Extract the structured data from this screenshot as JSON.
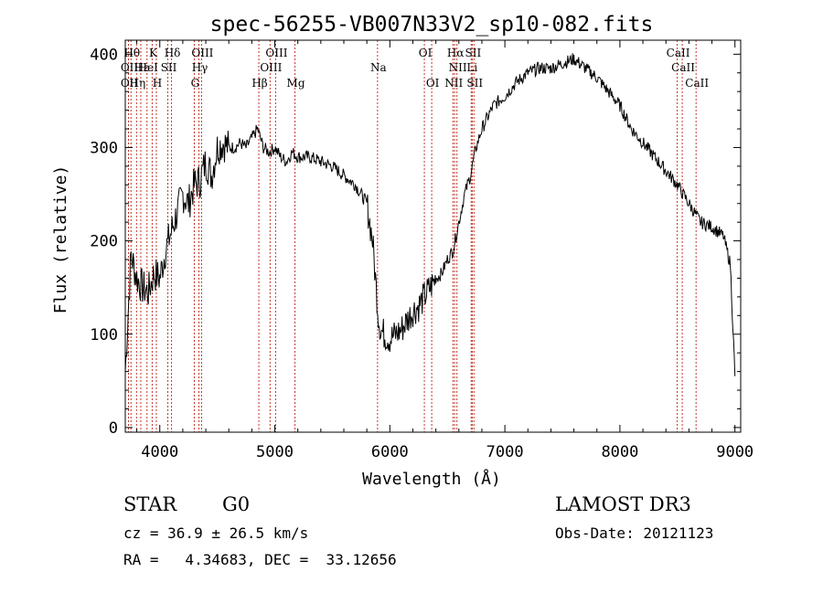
{
  "chart_data": {
    "type": "line",
    "title": "spec-56255-VB007N33V2_sp10-082.fits",
    "xlabel": "Wavelength (Å)",
    "ylabel": "Flux (relative)",
    "xlim": [
      3700,
      9050
    ],
    "ylim": [
      -5,
      415
    ],
    "xticks": [
      4000,
      5000,
      6000,
      7000,
      8000,
      9000
    ],
    "yticks": [
      0,
      100,
      200,
      300,
      400
    ],
    "series": [
      {
        "name": "flux",
        "x": [
          3700,
          3750,
          3800,
          3850,
          3900,
          3950,
          4000,
          4050,
          4100,
          4150,
          4200,
          4250,
          4300,
          4350,
          4400,
          4450,
          4500,
          4550,
          4600,
          4650,
          4700,
          4750,
          4800,
          4850,
          4900,
          4950,
          5000,
          5050,
          5100,
          5150,
          5200,
          5300,
          5400,
          5500,
          5600,
          5700,
          5800,
          5850,
          5900,
          5920,
          5950,
          6000,
          6050,
          6100,
          6150,
          6200,
          6250,
          6300,
          6350,
          6400,
          6450,
          6500,
          6550,
          6600,
          6650,
          6700,
          6750,
          6800,
          6900,
          7000,
          7100,
          7200,
          7300,
          7400,
          7500,
          7600,
          7700,
          7800,
          7900,
          8000,
          8100,
          8200,
          8300,
          8400,
          8500,
          8550,
          8600,
          8700,
          8800,
          8900,
          8960,
          9000
        ],
        "y": [
          60,
          185,
          160,
          150,
          145,
          165,
          160,
          190,
          210,
          230,
          250,
          240,
          260,
          265,
          285,
          270,
          300,
          305,
          300,
          300,
          305,
          300,
          310,
          320,
          300,
          295,
          300,
          290,
          285,
          295,
          290,
          290,
          285,
          280,
          270,
          260,
          240,
          200,
          120,
          105,
          100,
          95,
          100,
          105,
          115,
          125,
          130,
          140,
          150,
          160,
          165,
          180,
          190,
          220,
          250,
          270,
          300,
          320,
          345,
          355,
          370,
          380,
          385,
          385,
          390,
          395,
          385,
          375,
          360,
          345,
          320,
          305,
          290,
          275,
          260,
          250,
          240,
          220,
          215,
          205,
          175,
          55
        ]
      }
    ],
    "line_labels": [
      {
        "w": 3750,
        "row": 1,
        "label": "Hθ"
      },
      {
        "w": 3728,
        "row": 2,
        "label": "OII"
      },
      {
        "w": 3728,
        "row": 3,
        "label": "OII"
      },
      {
        "w": 3798,
        "row": 3,
        "label": "Hη"
      },
      {
        "w": 3835,
        "row": 2,
        "label": "Hε"
      },
      {
        "w": 3889,
        "row": 2,
        "label": "HeI"
      },
      {
        "w": 3934,
        "row": 1,
        "label": "K"
      },
      {
        "w": 3970,
        "row": 3,
        "label": "H"
      },
      {
        "w": 4070,
        "row": 2,
        "label": "SII"
      },
      {
        "w": 4102,
        "row": 1,
        "label": "Hδ"
      },
      {
        "w": 4300,
        "row": 3,
        "label": "G"
      },
      {
        "w": 4340,
        "row": 2,
        "label": "Hγ"
      },
      {
        "w": 4363,
        "row": 1,
        "label": "OIII"
      },
      {
        "w": 4861,
        "row": 3,
        "label": "Hβ"
      },
      {
        "w": 4959,
        "row": 2,
        "label": "OIII"
      },
      {
        "w": 5007,
        "row": 1,
        "label": "OIII"
      },
      {
        "w": 5175,
        "row": 3,
        "label": "Mg"
      },
      {
        "w": 5893,
        "row": 2,
        "label": "Na"
      },
      {
        "w": 6300,
        "row": 1,
        "label": "OI"
      },
      {
        "w": 6364,
        "row": 3,
        "label": "OI"
      },
      {
        "w": 6548,
        "row": 3,
        "label": "NII"
      },
      {
        "w": 6563,
        "row": 1,
        "label": "Hα"
      },
      {
        "w": 6583,
        "row": 2,
        "label": "NII"
      },
      {
        "w": 6707,
        "row": 2,
        "label": "Li"
      },
      {
        "w": 6716,
        "row": 1,
        "label": "SII"
      },
      {
        "w": 6731,
        "row": 3,
        "label": "SII"
      },
      {
        "w": 8498,
        "row": 1,
        "label": "CaII"
      },
      {
        "w": 8542,
        "row": 2,
        "label": "CaII"
      },
      {
        "w": 8662,
        "row": 3,
        "label": "CaII"
      }
    ]
  },
  "info": {
    "class_label": "STAR",
    "subclass": "G0",
    "survey": "LAMOST DR3",
    "cz": "cz = 36.9 ± 26.5 km/s",
    "obs_date": "Obs-Date: 20121123",
    "coords": "RA =   4.34683, DEC =  33.12656"
  }
}
